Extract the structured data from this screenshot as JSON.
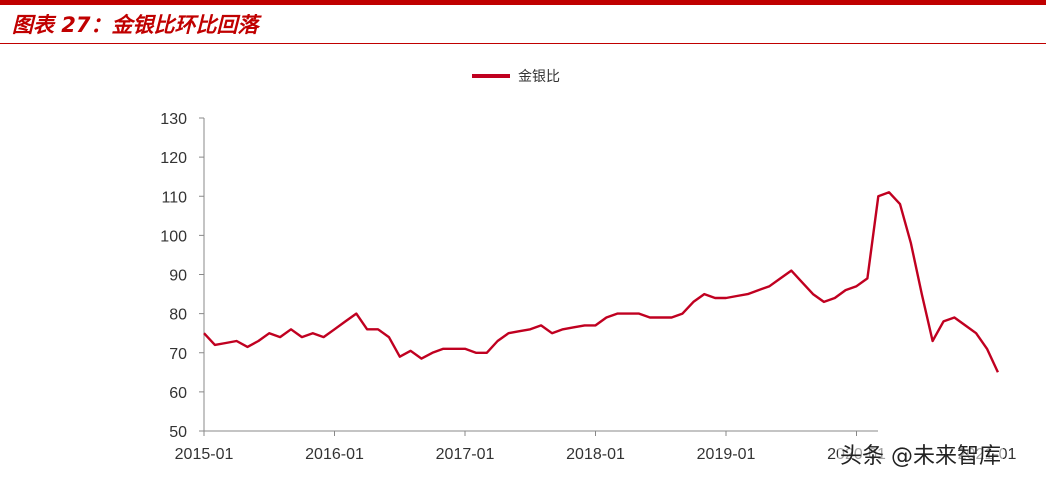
{
  "caption": "图表 27：金银比环比回落",
  "watermark": "头条 @未来智库",
  "colors": {
    "accent": "#c00000",
    "series": "#c00020"
  },
  "chart_data": {
    "type": "line",
    "legend": "top-center",
    "grid": false,
    "ylim": [
      50,
      130
    ],
    "yticks": [
      50,
      60,
      70,
      80,
      90,
      100,
      110,
      120,
      130
    ],
    "xlim": [
      "2015-01",
      "2021-02"
    ],
    "xticks": [
      "2015-01",
      "2016-01",
      "2017-01",
      "2018-01",
      "2019-01",
      "2020-01",
      "2021-01"
    ],
    "series": [
      {
        "name": "金银比",
        "points": [
          [
            "2015-01",
            75
          ],
          [
            "2015-02",
            72
          ],
          [
            "2015-03",
            72.5
          ],
          [
            "2015-04",
            73
          ],
          [
            "2015-05",
            71.5
          ],
          [
            "2015-06",
            73
          ],
          [
            "2015-07",
            75
          ],
          [
            "2015-08",
            74
          ],
          [
            "2015-09",
            76
          ],
          [
            "2015-10",
            74
          ],
          [
            "2015-11",
            75
          ],
          [
            "2015-12",
            74
          ],
          [
            "2016-01",
            76
          ],
          [
            "2016-02",
            78
          ],
          [
            "2016-03",
            80
          ],
          [
            "2016-04",
            76
          ],
          [
            "2016-05",
            76
          ],
          [
            "2016-06",
            74
          ],
          [
            "2016-07",
            69
          ],
          [
            "2016-08",
            70.5
          ],
          [
            "2016-09",
            68.5
          ],
          [
            "2016-10",
            70
          ],
          [
            "2016-11",
            71
          ],
          [
            "2016-12",
            71
          ],
          [
            "2017-01",
            71
          ],
          [
            "2017-02",
            70
          ],
          [
            "2017-03",
            70
          ],
          [
            "2017-04",
            73
          ],
          [
            "2017-05",
            75
          ],
          [
            "2017-06",
            75.5
          ],
          [
            "2017-07",
            76
          ],
          [
            "2017-08",
            77
          ],
          [
            "2017-09",
            75
          ],
          [
            "2017-10",
            76
          ],
          [
            "2017-11",
            76.5
          ],
          [
            "2017-12",
            77
          ],
          [
            "2018-01",
            77
          ],
          [
            "2018-02",
            79
          ],
          [
            "2018-03",
            80
          ],
          [
            "2018-04",
            80
          ],
          [
            "2018-05",
            80
          ],
          [
            "2018-06",
            79
          ],
          [
            "2018-07",
            79
          ],
          [
            "2018-08",
            79
          ],
          [
            "2018-09",
            80
          ],
          [
            "2018-10",
            83
          ],
          [
            "2018-11",
            85
          ],
          [
            "2018-12",
            84
          ],
          [
            "2019-01",
            84
          ],
          [
            "2019-02",
            84.5
          ],
          [
            "2019-03",
            85
          ],
          [
            "2019-04",
            86
          ],
          [
            "2019-05",
            87
          ],
          [
            "2019-06",
            89
          ],
          [
            "2019-07",
            91
          ],
          [
            "2019-08",
            88
          ],
          [
            "2019-09",
            85
          ],
          [
            "2019-10",
            83
          ],
          [
            "2019-11",
            84
          ],
          [
            "2019-12",
            86
          ],
          [
            "2020-01",
            87
          ],
          [
            "2020-02",
            89
          ],
          [
            "2020-03",
            110
          ],
          [
            "2020-04",
            111
          ],
          [
            "2020-05",
            108
          ],
          [
            "2020-06",
            98
          ],
          [
            "2020-07",
            85
          ],
          [
            "2020-08",
            73
          ],
          [
            "2020-09",
            78
          ],
          [
            "2020-10",
            79
          ],
          [
            "2020-11",
            77
          ],
          [
            "2020-12",
            75
          ],
          [
            "2021-01",
            71
          ],
          [
            "2021-02",
            65
          ]
        ]
      }
    ]
  }
}
